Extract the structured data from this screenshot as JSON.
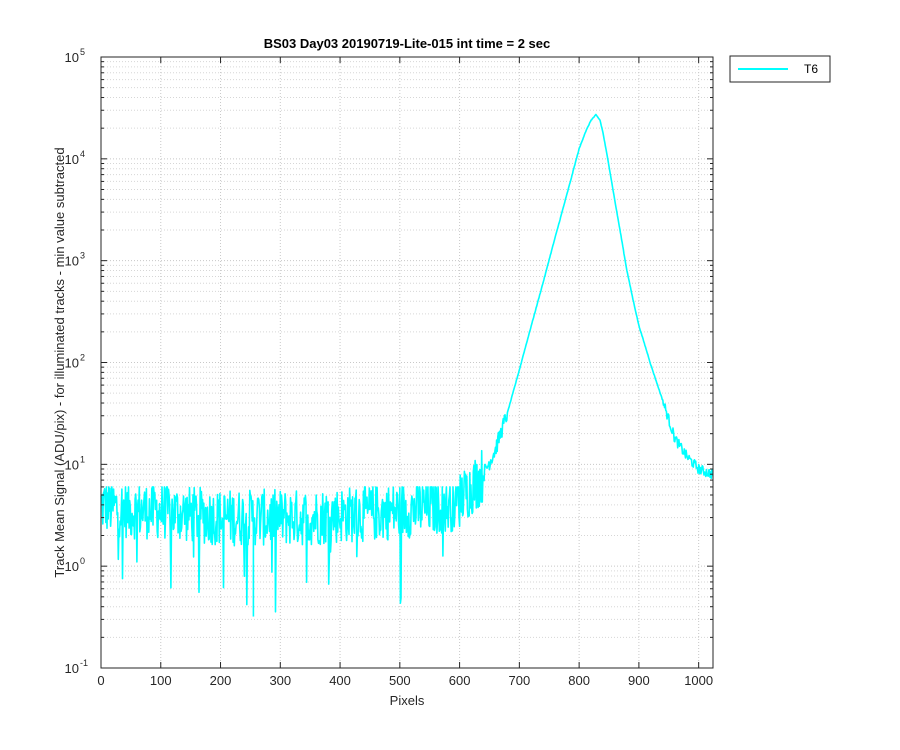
{
  "chart_data": {
    "type": "line",
    "title": "BS03 Day03 20190719-Lite-015 int time = 2 sec",
    "xlabel": "Pixels",
    "ylabel": "Track Mean Signal (ADU/pix) - for illuminated tracks - min value subtracted",
    "xlim": [
      0,
      1024
    ],
    "ylim": [
      0.1,
      100000
    ],
    "yscale": "log",
    "grid": true,
    "minor_grid": true,
    "legend_position": "outside-top-right",
    "x_ticks": [
      0,
      100,
      200,
      300,
      400,
      500,
      600,
      700,
      800,
      900,
      1000
    ],
    "x_tick_labels": [
      "0",
      "100",
      "200",
      "300",
      "400",
      "500",
      "600",
      "700",
      "800",
      "900",
      "1000"
    ],
    "y_ticks": [
      0.1,
      1,
      10,
      100,
      1000,
      10000,
      100000
    ],
    "y_tick_labels": [
      {
        "base": "10",
        "exp": "-1"
      },
      {
        "base": "10",
        "exp": "0"
      },
      {
        "base": "10",
        "exp": "1"
      },
      {
        "base": "10",
        "exp": "2"
      },
      {
        "base": "10",
        "exp": "3"
      },
      {
        "base": "10",
        "exp": "4"
      },
      {
        "base": "10",
        "exp": "5"
      }
    ],
    "series": [
      {
        "name": "T6",
        "color": "#00FFFF",
        "baseline_noise": {
          "x_range": [
            0,
            600
          ],
          "typical_value": 3.5,
          "min_value": 0.32,
          "max_value": 6
        },
        "x": [
          0,
          50,
          100,
          150,
          200,
          250,
          300,
          350,
          400,
          450,
          500,
          550,
          580,
          600,
          620,
          640,
          660,
          680,
          700,
          720,
          740,
          760,
          780,
          800,
          810,
          820,
          828,
          835,
          840,
          850,
          860,
          870,
          880,
          890,
          900,
          920,
          940,
          960,
          980,
          1000,
          1010,
          1024
        ],
        "y": [
          4,
          3.5,
          3.5,
          3.2,
          3,
          3,
          3,
          3,
          3.2,
          3.3,
          3.5,
          3.8,
          4,
          4.5,
          6,
          8,
          14,
          32,
          85,
          230,
          620,
          1700,
          4600,
          12500,
          18000,
          24000,
          27000,
          24000,
          18000,
          8500,
          3800,
          1750,
          800,
          420,
          230,
          95,
          42,
          18,
          12,
          9,
          8.5,
          8
        ]
      }
    ]
  },
  "legend": {
    "entries": [
      {
        "label": "T6",
        "color": "#00FFFF"
      }
    ]
  }
}
